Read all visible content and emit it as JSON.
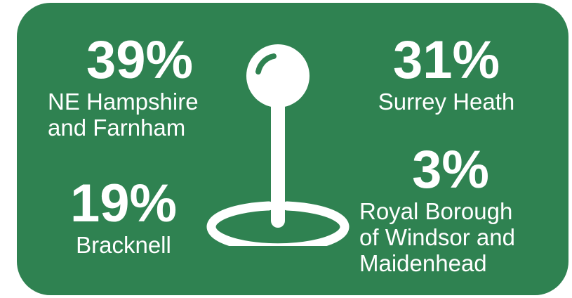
{
  "colors": {
    "background": "#2f8251",
    "foreground": "#ffffff"
  },
  "icon": "map-pin-icon",
  "stats": {
    "ne_hampshire": {
      "percent": "39%",
      "label_line1": "NE Hampshire",
      "label_line2": "and Farnham"
    },
    "surrey_heath": {
      "percent": "31%",
      "label_line1": "Surrey Heath"
    },
    "bracknell": {
      "percent": "19%",
      "label_line1": "Bracknell"
    },
    "rbwm": {
      "percent": "3%",
      "label_line1": "Royal Borough",
      "label_line2": "of Windsor and",
      "label_line3": "Maidenhead"
    }
  }
}
